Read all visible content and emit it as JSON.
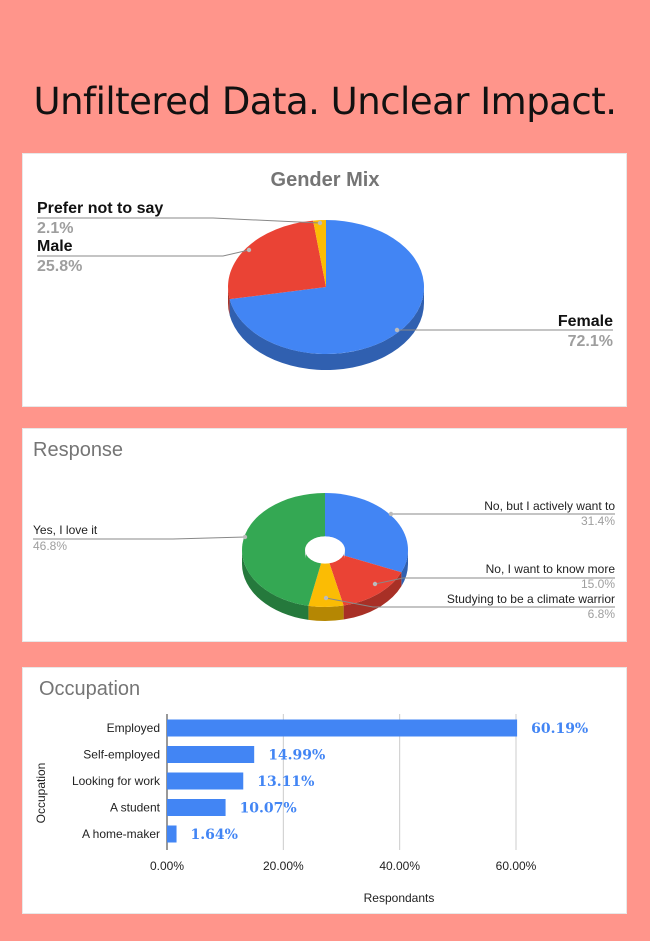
{
  "headline": "Unfiltered Data. Unclear Impact.",
  "colors": {
    "blue": "#4285f4",
    "red": "#ea4335",
    "yellow": "#fbbc04",
    "green": "#34a853",
    "page_bg": "#ff958b"
  },
  "chart_data": [
    {
      "type": "pie",
      "style": "3d",
      "title": "Gender Mix",
      "slices": [
        {
          "label": "Female",
          "value": 72.1,
          "pct_label": "72.1%",
          "color": "#4285f4"
        },
        {
          "label": "Male",
          "value": 25.8,
          "pct_label": "25.8%",
          "color": "#ea4335"
        },
        {
          "label": "Prefer not to say",
          "value": 2.1,
          "pct_label": "2.1%",
          "color": "#fbbc04"
        }
      ]
    },
    {
      "type": "pie",
      "style": "3d-donut",
      "title": "Response",
      "slices": [
        {
          "label": "No, but I actively want to",
          "value": 31.4,
          "pct_label": "31.4%",
          "color": "#4285f4"
        },
        {
          "label": "No, I want to know more",
          "value": 15.0,
          "pct_label": "15.0%",
          "color": "#ea4335"
        },
        {
          "label": "Studying to be a climate warrior",
          "value": 6.8,
          "pct_label": "6.8%",
          "color": "#fbbc04"
        },
        {
          "label": "Yes, I love it",
          "value": 46.8,
          "pct_label": "46.8%",
          "color": "#34a853"
        }
      ]
    },
    {
      "type": "bar",
      "orientation": "horizontal",
      "title": "Occupation",
      "ylabel": "Occupation",
      "xlabel": "Respondants",
      "categories": [
        "Employed",
        "Self-employed",
        "Looking for work",
        "A student",
        "A home-maker"
      ],
      "values": [
        60.19,
        14.99,
        13.11,
        10.07,
        1.64
      ],
      "value_labels": [
        "60.19%",
        "14.99%",
        "13.11%",
        "10.07%",
        "1.64%"
      ],
      "xlim": [
        0,
        70
      ],
      "xticks": [
        0,
        20,
        40,
        60
      ],
      "xtick_labels": [
        "0.00%",
        "20.00%",
        "40.00%",
        "60.00%"
      ],
      "grid": true,
      "bar_color": "#4285f4"
    }
  ]
}
